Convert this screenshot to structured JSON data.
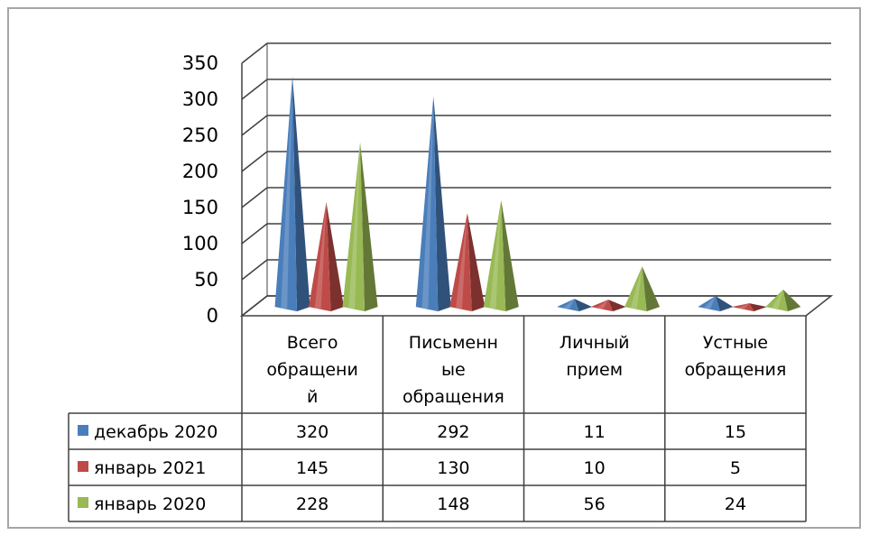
{
  "chart_data": {
    "type": "bar",
    "style": "3d-cone",
    "categories": [
      [
        "Всего",
        "обращени",
        "й"
      ],
      [
        "Письменн",
        "ые",
        "обращения"
      ],
      [
        "Личный",
        "прием"
      ],
      [
        "Устные",
        "обращения"
      ]
    ],
    "series": [
      {
        "name": "декабрь 2020",
        "color": "#4a7ebb",
        "values": [
          320,
          292,
          11,
          15
        ]
      },
      {
        "name": "январь 2021",
        "color": "#be4b48",
        "values": [
          145,
          130,
          10,
          5
        ]
      },
      {
        "name": "январь  2020",
        "color": "#98b954",
        "values": [
          228,
          148,
          56,
          24
        ]
      }
    ],
    "yticks": [
      0,
      50,
      100,
      150,
      200,
      250,
      300,
      350
    ],
    "ylim": [
      0,
      350
    ],
    "grid": true,
    "legend": "data-table-left"
  }
}
